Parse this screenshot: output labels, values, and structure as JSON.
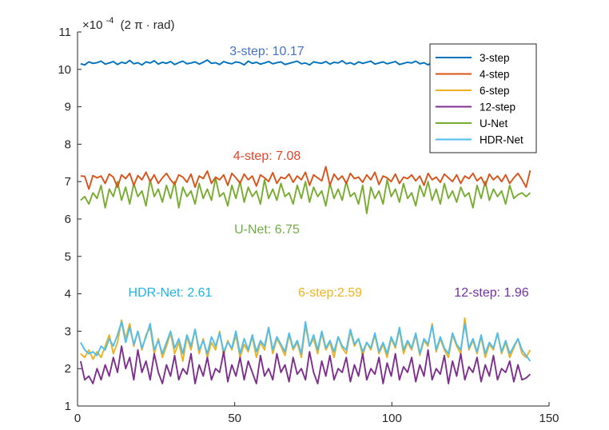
{
  "chart_data": {
    "type": "line",
    "scale_prefix": "×10",
    "scale_exponent": "-4",
    "unit_label": "(2 π · rad)",
    "xlim": [
      0,
      150
    ],
    "ylim": [
      1,
      11
    ],
    "x_ticks": [
      0,
      50,
      100,
      150
    ],
    "y_ticks": [
      1,
      2,
      3,
      4,
      5,
      6,
      7,
      8,
      9,
      10,
      11
    ],
    "grid": false,
    "legend_position": "top-right",
    "annotations": [
      {
        "text": "3-step: 10.17",
        "color": "#4472C4"
      },
      {
        "text": "4-step: 7.08",
        "color": "#E0442A"
      },
      {
        "text": "U-Net: 6.75",
        "color": "#70AD47"
      },
      {
        "text": "HDR-Net: 2.61",
        "color": "#1EB4E6"
      },
      {
        "text": "6-step:2.59",
        "color": "#F2B21B"
      },
      {
        "text": "12-step: 1.96",
        "color": "#7030A0"
      }
    ],
    "series": [
      {
        "name": "3-step",
        "color": "#0072BD",
        "mean": 10.17,
        "spread": 0.05,
        "values": [
          10.15,
          10.12,
          10.2,
          10.16,
          10.18,
          10.22,
          10.14,
          10.17,
          10.21,
          10.13,
          10.19,
          10.16,
          10.24,
          10.15,
          10.18,
          10.12,
          10.2,
          10.17,
          10.23,
          10.14,
          10.19,
          10.16,
          10.21,
          10.13,
          10.18,
          10.22,
          10.15,
          10.17,
          10.2,
          10.14,
          10.19,
          10.25,
          10.16,
          10.18,
          10.13,
          10.21,
          10.17,
          10.15,
          10.2,
          10.18,
          10.12,
          10.22,
          10.16,
          10.19,
          10.14,
          10.17,
          10.21,
          10.15,
          10.18,
          10.2,
          10.13,
          10.16,
          10.19,
          10.22,
          10.15,
          10.17,
          10.12,
          10.2,
          10.18,
          10.16,
          10.21,
          10.14,
          10.19,
          10.17,
          10.23,
          10.15,
          10.18,
          10.13,
          10.2,
          10.16,
          10.19,
          10.22,
          10.14,
          10.17,
          10.2,
          10.15,
          10.18,
          10.21,
          10.13,
          10.16,
          10.19,
          10.17,
          10.22,
          10.15,
          10.18,
          10.12,
          10.2,
          10.16,
          10.19,
          10.21,
          10.14,
          10.17,
          10.2,
          10.15,
          10.18,
          10.13,
          10.21,
          10.16,
          10.19,
          10.17,
          10.22,
          10.14,
          10.18,
          10.2,
          10.15,
          10.17,
          10.12,
          10.19,
          10.21,
          10.16,
          10.18
        ]
      },
      {
        "name": "4-step",
        "color": "#D95319",
        "mean": 7.08,
        "spread": 0.18,
        "values": [
          7.15,
          7.14,
          6.8,
          7.16,
          7.1,
          7.15,
          6.95,
          7.2,
          7.12,
          6.85,
          7.18,
          7.08,
          7.22,
          6.9,
          7.16,
          7.05,
          7.25,
          7.0,
          7.18,
          6.95,
          7.1,
          7.22,
          7.05,
          6.92,
          7.18,
          7.12,
          6.98,
          7.2,
          6.85,
          7.15,
          7.08,
          7.28,
          6.95,
          7.12,
          7.05,
          7.18,
          6.9,
          7.22,
          7.1,
          6.96,
          7.2,
          7.05,
          7.15,
          6.88,
          7.18,
          7.1,
          7.0,
          7.24,
          6.95,
          7.12,
          7.08,
          7.2,
          6.98,
          7.15,
          7.05,
          7.25,
          6.9,
          7.18,
          7.1,
          7.02,
          7.4,
          6.9,
          7.2,
          7.05,
          7.15,
          6.95,
          7.22,
          7.08,
          7.12,
          6.98,
          7.18,
          7.05,
          7.25,
          6.92,
          7.15,
          7.1,
          7.0,
          7.2,
          6.95,
          7.12,
          7.08,
          7.18,
          7.02,
          7.15,
          6.9,
          7.22,
          7.05,
          7.12,
          6.98,
          7.2,
          7.1,
          7.0,
          7.18,
          6.95,
          7.15,
          7.08,
          7.22,
          7.02,
          7.12,
          6.9,
          7.2,
          7.05,
          7.15,
          7.0,
          7.18,
          6.95,
          7.1,
          7.22,
          7.05,
          6.85,
          7.3
        ]
      },
      {
        "name": "6-step",
        "color": "#EDB120",
        "mean": 2.59,
        "spread": 0.3,
        "values": [
          2.4,
          2.3,
          2.5,
          2.25,
          2.45,
          2.3,
          2.6,
          2.9,
          2.4,
          2.7,
          3.3,
          2.8,
          3.2,
          2.6,
          3.0,
          2.5,
          2.9,
          3.1,
          2.4,
          2.8,
          2.3,
          2.6,
          2.95,
          2.4,
          2.7,
          2.2,
          2.85,
          2.5,
          3.05,
          2.4,
          2.8,
          2.3,
          2.7,
          2.5,
          3.0,
          2.35,
          2.75,
          2.5,
          2.9,
          2.3,
          2.65,
          2.45,
          2.85,
          2.3,
          2.7,
          2.5,
          3.1,
          2.4,
          2.8,
          2.6,
          2.35,
          2.9,
          2.5,
          2.7,
          2.3,
          3.15,
          2.6,
          2.8,
          2.4,
          2.95,
          2.5,
          2.7,
          2.3,
          2.85,
          2.55,
          2.4,
          3.0,
          2.6,
          2.8,
          2.35,
          2.7,
          2.5,
          2.9,
          2.4,
          2.65,
          2.3,
          2.8,
          2.55,
          3.05,
          2.4,
          2.7,
          2.5,
          2.9,
          2.35,
          2.75,
          2.6,
          3.2,
          2.45,
          2.8,
          2.5,
          2.3,
          2.9,
          2.6,
          2.4,
          3.35,
          2.5,
          2.75,
          2.4,
          2.85,
          2.3,
          2.65,
          2.5,
          2.95,
          2.4,
          2.7,
          2.3,
          2.55,
          2.8,
          2.4,
          2.3,
          2.5
        ]
      },
      {
        "name": "12-step",
        "color": "#7E2F8E",
        "mean": 1.96,
        "spread": 0.3,
        "values": [
          2.2,
          1.7,
          1.8,
          1.6,
          2.0,
          1.7,
          2.1,
          1.8,
          2.3,
          1.9,
          2.6,
          2.0,
          2.3,
          1.7,
          2.5,
          1.9,
          2.2,
          1.7,
          2.4,
          1.9,
          1.6,
          2.1,
          1.8,
          2.35,
          1.7,
          2.0,
          1.85,
          2.4,
          1.6,
          2.1,
          1.8,
          2.3,
          1.7,
          2.0,
          1.9,
          2.45,
          1.65,
          2.1,
          1.8,
          2.3,
          1.7,
          2.2,
          1.9,
          1.6,
          2.35,
          1.8,
          2.0,
          1.7,
          2.4,
          1.9,
          2.1,
          1.65,
          2.3,
          1.85,
          2.0,
          1.7,
          2.45,
          1.9,
          1.6,
          2.2,
          1.8,
          2.35,
          1.7,
          2.0,
          1.9,
          2.3,
          1.65,
          2.1,
          1.8,
          2.4,
          1.7,
          2.0,
          1.85,
          2.3,
          1.6,
          2.15,
          1.8,
          2.4,
          1.7,
          2.05,
          1.9,
          2.3,
          1.65,
          2.1,
          1.8,
          2.5,
          1.7,
          2.0,
          1.85,
          2.35,
          1.6,
          2.2,
          1.8,
          2.4,
          1.7,
          2.05,
          1.9,
          2.3,
          1.65,
          2.1,
          1.8,
          2.35,
          1.7,
          2.0,
          1.9,
          2.2,
          1.65,
          2.1,
          1.7,
          1.75,
          1.85
        ]
      },
      {
        "name": "U-Net",
        "color": "#77AC30",
        "mean": 6.75,
        "spread": 0.3,
        "values": [
          6.5,
          6.6,
          6.4,
          6.7,
          6.55,
          6.9,
          6.3,
          6.8,
          6.6,
          7.0,
          6.5,
          6.85,
          6.4,
          6.95,
          6.6,
          6.75,
          6.35,
          7.05,
          6.6,
          6.8,
          6.45,
          6.9,
          6.55,
          7.0,
          6.3,
          6.85,
          6.6,
          6.75,
          6.4,
          6.95,
          6.55,
          6.8,
          6.5,
          7.1,
          6.6,
          6.7,
          6.35,
          6.9,
          6.55,
          7.0,
          6.45,
          6.85,
          6.6,
          6.75,
          6.4,
          7.05,
          6.55,
          6.8,
          6.5,
          6.95,
          6.6,
          6.7,
          6.4,
          6.9,
          6.55,
          7.0,
          6.45,
          6.85,
          6.6,
          6.75,
          6.35,
          6.95,
          6.55,
          6.8,
          6.5,
          7.0,
          6.6,
          6.7,
          6.4,
          6.9,
          6.15,
          6.85,
          6.55,
          6.75,
          6.4,
          7.05,
          6.6,
          6.8,
          6.45,
          6.95,
          6.55,
          6.7,
          6.35,
          6.9,
          6.6,
          7.0,
          6.5,
          6.8,
          6.4,
          6.95,
          6.55,
          6.75,
          6.45,
          6.85,
          6.6,
          6.7,
          6.3,
          6.9,
          6.55,
          7.0,
          6.5,
          6.8,
          6.6,
          6.75,
          6.4,
          6.9,
          6.55,
          6.65,
          6.7,
          6.6,
          6.7
        ]
      },
      {
        "name": "HDR-Net",
        "color": "#4DBEEE",
        "mean": 2.61,
        "spread": 0.3,
        "values": [
          2.7,
          2.5,
          2.4,
          2.45,
          2.35,
          2.6,
          2.5,
          2.8,
          2.6,
          2.9,
          3.25,
          2.7,
          3.1,
          2.65,
          3.0,
          2.55,
          2.85,
          3.2,
          2.5,
          2.75,
          2.4,
          2.7,
          3.0,
          2.55,
          2.8,
          2.4,
          2.9,
          2.6,
          3.05,
          2.5,
          2.75,
          2.4,
          2.85,
          2.6,
          2.95,
          2.45,
          2.7,
          2.55,
          3.0,
          2.4,
          2.8,
          2.5,
          2.9,
          2.45,
          2.75,
          2.6,
          3.1,
          2.5,
          2.85,
          2.65,
          2.45,
          2.95,
          2.55,
          2.75,
          2.4,
          3.25,
          2.6,
          2.9,
          2.5,
          3.0,
          2.55,
          2.75,
          2.45,
          2.85,
          2.6,
          2.5,
          3.05,
          2.65,
          2.8,
          2.45,
          2.7,
          2.55,
          2.95,
          2.45,
          2.7,
          2.4,
          2.85,
          2.6,
          3.1,
          2.5,
          2.75,
          2.55,
          2.95,
          2.4,
          2.8,
          2.65,
          3.15,
          2.5,
          2.85,
          2.55,
          2.4,
          2.95,
          2.65,
          2.5,
          3.2,
          2.55,
          2.8,
          2.45,
          2.9,
          2.4,
          2.7,
          2.55,
          2.95,
          2.45,
          2.75,
          2.4,
          2.6,
          2.8,
          2.5,
          2.35,
          2.2
        ]
      }
    ]
  }
}
